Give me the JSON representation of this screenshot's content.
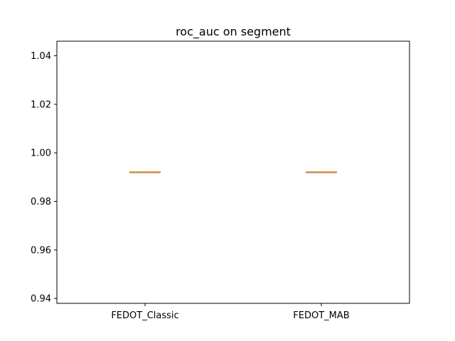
{
  "chart_data": {
    "type": "box",
    "title": "roc_auc on segment",
    "xlabel": "",
    "ylabel": "",
    "categories": [
      "FEDOT_Classic",
      "FEDOT_MAB"
    ],
    "series": [
      {
        "category": "FEDOT_Classic",
        "min": 0.992,
        "q1": 0.992,
        "median": 0.992,
        "q3": 0.992,
        "max": 0.992
      },
      {
        "category": "FEDOT_MAB",
        "min": 0.992,
        "q1": 0.992,
        "median": 0.992,
        "q3": 0.992,
        "max": 0.992
      }
    ],
    "ylim": [
      0.938,
      1.046
    ],
    "yticks": [
      0.94,
      0.96,
      0.98,
      1.0,
      1.02,
      1.04
    ],
    "ytick_labels": [
      "0.94",
      "0.96",
      "0.98",
      "1.00",
      "1.02",
      "1.04"
    ],
    "grid": false,
    "colors": {
      "box": "#000000",
      "median": "#ff7f0e"
    }
  }
}
